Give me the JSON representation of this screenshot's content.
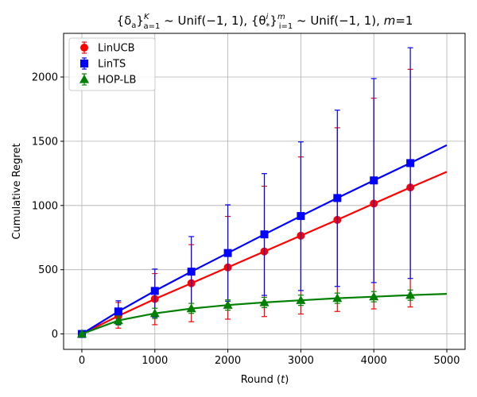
{
  "chart_data": {
    "type": "line",
    "title": "{δa}Ka=1 ~ Unif(−1, 1), {θi*}mi=1 ~ Unif(−1, 1), m=1",
    "title_parts": {
      "p1": "{δ",
      "p1_sub": "a",
      "p2": "}",
      "p2_sup": "K",
      "p2_sub": "a=1",
      "p3": " ~ Unif(−1, 1), {θ",
      "p3_sup": "i",
      "p3_sub": "*",
      "p4": "}",
      "p4_sup": "m",
      "p4_sub": "i=1",
      "p5": " ~ Unif(−1, 1), ",
      "p5_m": "m",
      "p6": "=1"
    },
    "xlabel": "Round (t)",
    "xlabel_parts": {
      "pre": "Round (",
      "var": "t",
      "post": ")"
    },
    "ylabel": "Cumulative Regret",
    "xlim": [
      -250,
      5250
    ],
    "ylim": [
      -120,
      2340
    ],
    "xticks": [
      0,
      1000,
      2000,
      3000,
      4000,
      5000
    ],
    "yticks": [
      0,
      500,
      1000,
      1500,
      2000
    ],
    "grid": true,
    "legend_position": "top-left",
    "series": [
      {
        "name": "LinUCB",
        "color": "#ff0000",
        "marker": "circle",
        "line": [
          [
            0,
            0
          ],
          [
            500,
            140
          ],
          [
            1000,
            272
          ],
          [
            1500,
            395
          ],
          [
            2000,
            518
          ],
          [
            2500,
            642
          ],
          [
            3000,
            765
          ],
          [
            3500,
            888
          ],
          [
            4000,
            1015
          ],
          [
            4500,
            1140
          ],
          [
            5000,
            1262
          ]
        ],
        "errorbars": [
          {
            "x": 0,
            "y": 0,
            "lo": 0,
            "hi": 0
          },
          {
            "x": 500,
            "y": 140,
            "lo": 45,
            "hi": 245
          },
          {
            "x": 1000,
            "y": 272,
            "lo": 72,
            "hi": 470
          },
          {
            "x": 1500,
            "y": 395,
            "lo": 95,
            "hi": 695
          },
          {
            "x": 2000,
            "y": 518,
            "lo": 115,
            "hi": 915
          },
          {
            "x": 2500,
            "y": 642,
            "lo": 135,
            "hi": 1150
          },
          {
            "x": 3000,
            "y": 765,
            "lo": 155,
            "hi": 1378
          },
          {
            "x": 3500,
            "y": 888,
            "lo": 175,
            "hi": 1605
          },
          {
            "x": 4000,
            "y": 1015,
            "lo": 195,
            "hi": 1835
          },
          {
            "x": 4500,
            "y": 1140,
            "lo": 210,
            "hi": 2060
          }
        ]
      },
      {
        "name": "LinTS",
        "color": "#0000ff",
        "marker": "square",
        "line": [
          [
            0,
            0
          ],
          [
            500,
            175
          ],
          [
            1000,
            335
          ],
          [
            1500,
            485
          ],
          [
            2000,
            630
          ],
          [
            2500,
            775
          ],
          [
            3000,
            918
          ],
          [
            3500,
            1058
          ],
          [
            4000,
            1195
          ],
          [
            4500,
            1330
          ],
          [
            5000,
            1470
          ]
        ],
        "errorbars": [
          {
            "x": 0,
            "y": 0,
            "lo": 0,
            "hi": 0
          },
          {
            "x": 500,
            "y": 175,
            "lo": 75,
            "hi": 258
          },
          {
            "x": 1000,
            "y": 335,
            "lo": 130,
            "hi": 505
          },
          {
            "x": 1500,
            "y": 485,
            "lo": 200,
            "hi": 758
          },
          {
            "x": 2000,
            "y": 630,
            "lo": 255,
            "hi": 1005
          },
          {
            "x": 2500,
            "y": 775,
            "lo": 300,
            "hi": 1248
          },
          {
            "x": 3000,
            "y": 918,
            "lo": 338,
            "hi": 1495
          },
          {
            "x": 3500,
            "y": 1058,
            "lo": 370,
            "hi": 1742
          },
          {
            "x": 4000,
            "y": 1195,
            "lo": 400,
            "hi": 1988
          },
          {
            "x": 4500,
            "y": 1330,
            "lo": 432,
            "hi": 2228
          }
        ]
      },
      {
        "name": "HOP-LB",
        "color": "#008000",
        "marker": "triangle",
        "line": [
          [
            0,
            0
          ],
          [
            500,
            105
          ],
          [
            1000,
            160
          ],
          [
            1500,
            198
          ],
          [
            2000,
            225
          ],
          [
            2500,
            245
          ],
          [
            3000,
            262
          ],
          [
            3500,
            278
          ],
          [
            4000,
            290
          ],
          [
            4500,
            302
          ],
          [
            5000,
            312
          ]
        ],
        "errorbars": [
          {
            "x": 0,
            "y": 0,
            "lo": 0,
            "hi": 0
          },
          {
            "x": 500,
            "y": 105,
            "lo": 70,
            "hi": 140
          },
          {
            "x": 1000,
            "y": 160,
            "lo": 120,
            "hi": 200
          },
          {
            "x": 1500,
            "y": 198,
            "lo": 160,
            "hi": 238
          },
          {
            "x": 2000,
            "y": 225,
            "lo": 185,
            "hi": 265
          },
          {
            "x": 2500,
            "y": 245,
            "lo": 205,
            "hi": 285
          },
          {
            "x": 3000,
            "y": 262,
            "lo": 222,
            "hi": 302
          },
          {
            "x": 3500,
            "y": 278,
            "lo": 238,
            "hi": 318
          },
          {
            "x": 4000,
            "y": 290,
            "lo": 250,
            "hi": 330
          },
          {
            "x": 4500,
            "y": 302,
            "lo": 262,
            "hi": 342
          }
        ]
      }
    ]
  }
}
